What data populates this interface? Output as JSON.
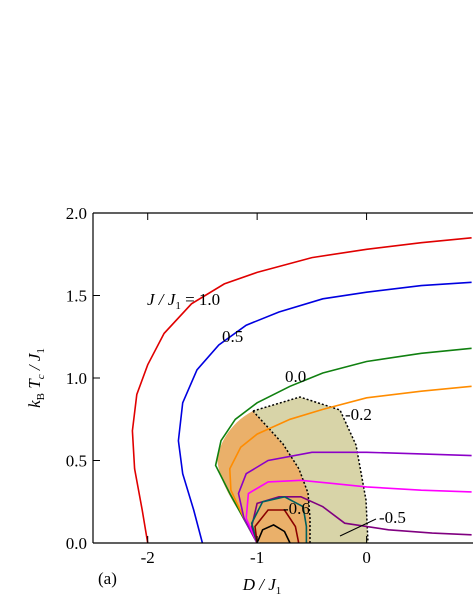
{
  "chart_data": {
    "type": "line",
    "xlabel": [
      "D / J",
      "1"
    ],
    "ylabel": [
      "k",
      "B",
      " T",
      "c",
      " / J",
      "1"
    ],
    "annotation": [
      "J / J",
      "1",
      " = "
    ],
    "panel": "(a)",
    "xlim": [
      -2.5,
      1
    ],
    "ylim": [
      0,
      2
    ],
    "xticks": [
      -2,
      -1,
      0
    ],
    "yticks": [
      {
        "value": 0,
        "label": "0.0"
      },
      {
        "value": 0.5,
        "label": "0.5"
      },
      {
        "value": 1,
        "label": "1.0"
      },
      {
        "value": 1.5,
        "label": "1.5"
      },
      {
        "value": 2,
        "label": "2.0"
      }
    ],
    "series": [
      {
        "name": "1.0",
        "color": "#e00000",
        "x": [
          -2,
          -2.05,
          -2.12,
          -2.14,
          -2.1,
          -2.0,
          -1.85,
          -1.6,
          -1.3,
          -1,
          -0.5,
          0,
          0.5,
          0.96
        ],
        "values": [
          0,
          0.2,
          0.45,
          0.68,
          0.9,
          1.08,
          1.27,
          1.45,
          1.57,
          1.64,
          1.73,
          1.78,
          1.82,
          1.85
        ]
      },
      {
        "name": "0.5",
        "color": "#0000e0",
        "x": [
          -1.5,
          -1.58,
          -1.68,
          -1.72,
          -1.68,
          -1.55,
          -1.35,
          -1.1,
          -0.8,
          -0.4,
          0,
          0.5,
          0.96
        ],
        "values": [
          0,
          0.2,
          0.42,
          0.62,
          0.85,
          1.05,
          1.2,
          1.32,
          1.4,
          1.48,
          1.52,
          1.56,
          1.58
        ]
      },
      {
        "name": "0.0",
        "color": "#108010",
        "x": [
          -1,
          -1.1,
          -1.25,
          -1.38,
          -1.33,
          -1.2,
          -1.0,
          -0.7,
          -0.4,
          0,
          0.5,
          0.96
        ],
        "values": [
          0,
          0.12,
          0.3,
          0.47,
          0.62,
          0.75,
          0.85,
          0.95,
          1.03,
          1.1,
          1.15,
          1.18
        ]
      },
      {
        "name": "-0.2",
        "color": "#ff8c00",
        "x": [
          -1,
          -1.12,
          -1.24,
          -1.25,
          -1.15,
          -1,
          -0.7,
          -0.4,
          0,
          0.5,
          0.96
        ],
        "values": [
          0,
          0.15,
          0.32,
          0.45,
          0.58,
          0.66,
          0.75,
          0.81,
          0.88,
          0.92,
          0.95
        ]
      },
      {
        "color": "#8b00c8",
        "x": [
          -1,
          -1.12,
          -1.17,
          -1.1,
          -0.9,
          -0.5,
          0,
          0.5,
          0.96
        ],
        "values": [
          0,
          0.15,
          0.3,
          0.42,
          0.5,
          0.55,
          0.55,
          0.54,
          0.53
        ]
      },
      {
        "color": "#ff00ff",
        "x": [
          -1,
          -1.1,
          -1.08,
          -0.9,
          -0.6,
          -0.3,
          0,
          0.5,
          0.96
        ],
        "values": [
          0,
          0.15,
          0.3,
          0.37,
          0.38,
          0.36,
          0.34,
          0.32,
          0.31
        ]
      },
      {
        "name": "-0.5",
        "color": "#800080",
        "x": [
          -1,
          -1.05,
          -1.0,
          -0.8,
          -0.6,
          -0.4,
          -0.2,
          0.2,
          0.6,
          0.96
        ],
        "values": [
          0,
          0.1,
          0.24,
          0.28,
          0.28,
          0.22,
          0.12,
          0.08,
          0.06,
          0.05
        ]
      },
      {
        "color": "#006060",
        "x": [
          -1,
          -1.05,
          -0.95,
          -0.75,
          -0.58,
          -0.55,
          -0.55
        ],
        "values": [
          0,
          0.12,
          0.25,
          0.28,
          0.22,
          0.1,
          0
        ]
      },
      {
        "name": "-0.6",
        "color": "#8b0000",
        "x": [
          -1,
          -1.02,
          -0.9,
          -0.75,
          -0.65,
          -0.62
        ],
        "values": [
          0,
          0.1,
          0.2,
          0.2,
          0.1,
          0
        ]
      },
      {
        "color": "#000000",
        "x": [
          -1,
          -0.95,
          -0.85,
          -0.75,
          -0.7
        ],
        "values": [
          0,
          0.08,
          0.11,
          0.07,
          0
        ]
      }
    ]
  }
}
